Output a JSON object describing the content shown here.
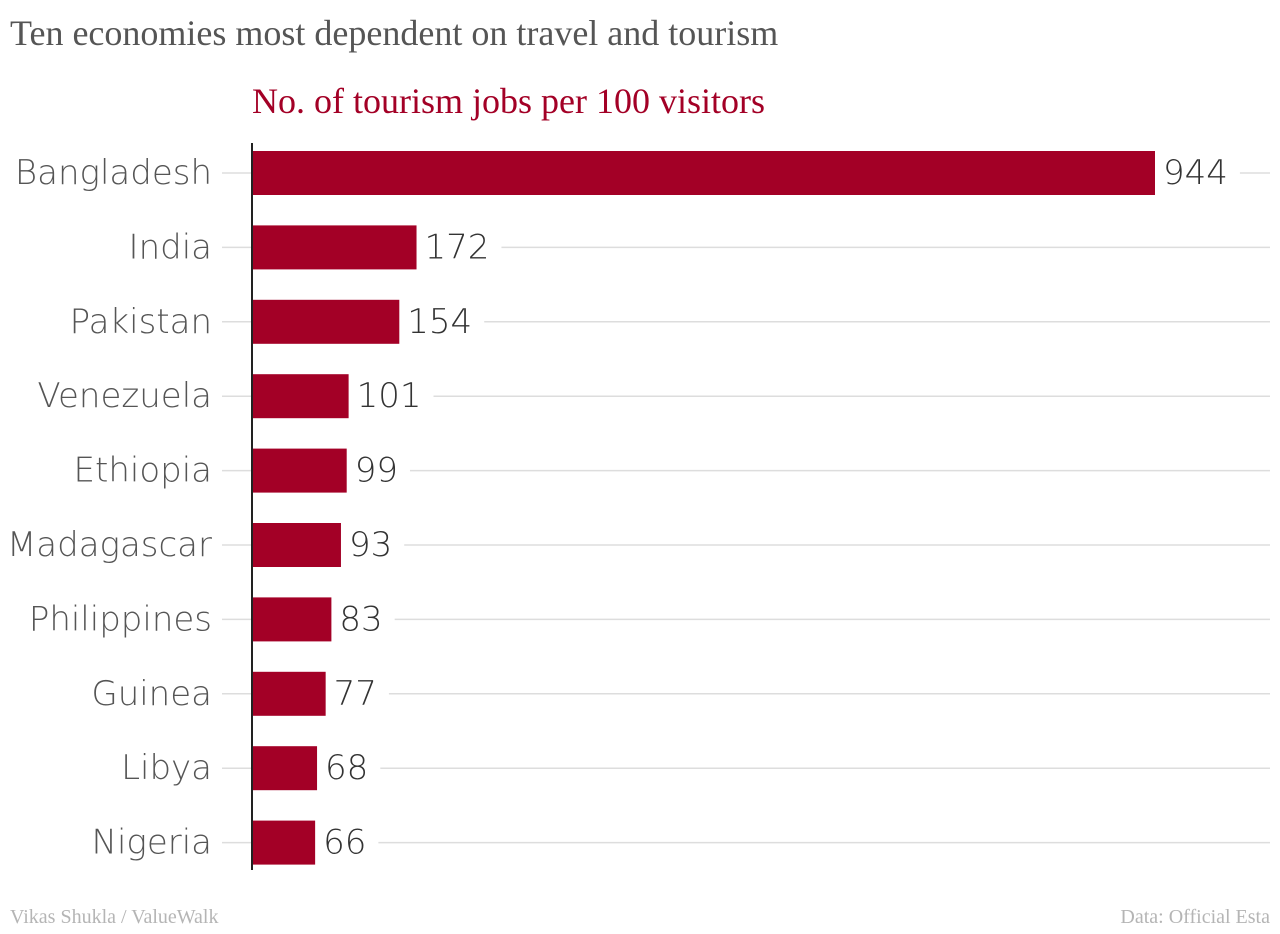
{
  "chart_data": {
    "type": "bar",
    "orientation": "horizontal",
    "title": "Ten economies most dependent on travel and tourism",
    "subtitle": "No. of tourism jobs per 100 visitors",
    "categories": [
      "Bangladesh",
      "India",
      "Pakistan",
      "Venezuela",
      "Ethiopia",
      "Madagascar",
      "Philippines",
      "Guinea",
      "Libya",
      "Nigeria"
    ],
    "values": [
      944,
      172,
      154,
      101,
      99,
      93,
      83,
      77,
      68,
      66
    ],
    "xlim": [
      0,
      1000
    ],
    "grid": true,
    "bar_color": "#a30026",
    "axis_color": "#222222",
    "grid_color": "#dddddd"
  },
  "footer": {
    "credit": "Vikas Shukla / ValueWalk",
    "source": "Data: Official Esta"
  }
}
